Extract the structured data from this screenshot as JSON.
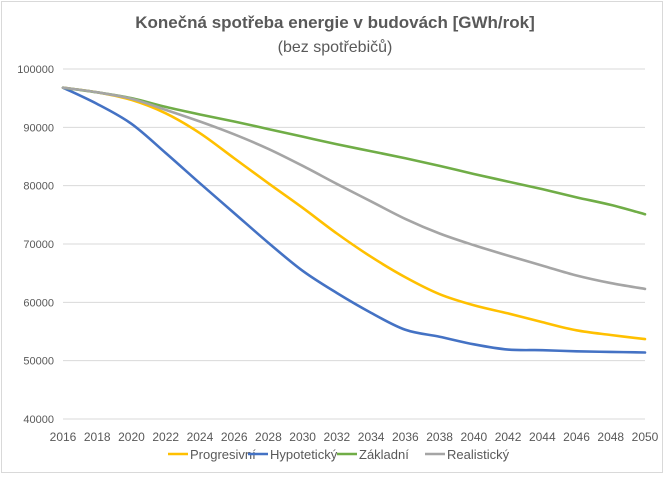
{
  "chart_data": {
    "type": "line",
    "title": "Konečná spotřeba energie v budovách [GWh/rok]",
    "subtitle": "(bez spotřebičů)",
    "xlabel": "",
    "ylabel": "",
    "ylim": [
      40000,
      100000
    ],
    "yticks": [
      "100000",
      "90000",
      "80000",
      "70000",
      "60000",
      "50000",
      "40000"
    ],
    "ytick_values": [
      100000,
      90000,
      80000,
      70000,
      60000,
      50000,
      40000
    ],
    "x": [
      2016,
      2018,
      2020,
      2022,
      2024,
      2026,
      2028,
      2030,
      2032,
      2034,
      2036,
      2038,
      2040,
      2042,
      2044,
      2046,
      2048,
      2050
    ],
    "xticks": [
      "2016",
      "2018",
      "2020",
      "2022",
      "2024",
      "2026",
      "2028",
      "2030",
      "2032",
      "2034",
      "2036",
      "2038",
      "2040",
      "2042",
      "2044",
      "2046",
      "2048",
      "2050"
    ],
    "grid": true,
    "legend_position": "bottom",
    "series": [
      {
        "name": "Progresivní",
        "color": "#ffc000",
        "values": [
          96800,
          96000,
          94700,
          92400,
          89000,
          84700,
          80400,
          76200,
          71800,
          67800,
          64300,
          61400,
          59500,
          58100,
          56600,
          55200,
          54400,
          53700
        ]
      },
      {
        "name": "Hypotetický",
        "color": "#4472c4",
        "values": [
          96800,
          94000,
          90600,
          85600,
          80400,
          75300,
          70200,
          65400,
          61600,
          58200,
          55300,
          54100,
          52800,
          51900,
          51800,
          51600,
          51500,
          51400
        ]
      },
      {
        "name": "Základní",
        "color": "#70ad47",
        "values": [
          96800,
          96000,
          95000,
          93500,
          92200,
          91000,
          89700,
          88400,
          87100,
          85900,
          84700,
          83400,
          82000,
          80700,
          79400,
          78000,
          76700,
          75100
        ]
      },
      {
        "name": "Realistický",
        "color": "#a5a5a5",
        "values": [
          96800,
          96000,
          94900,
          93000,
          91000,
          88800,
          86300,
          83400,
          80300,
          77300,
          74300,
          71800,
          69800,
          68000,
          66300,
          64600,
          63300,
          62300
        ]
      }
    ]
  }
}
